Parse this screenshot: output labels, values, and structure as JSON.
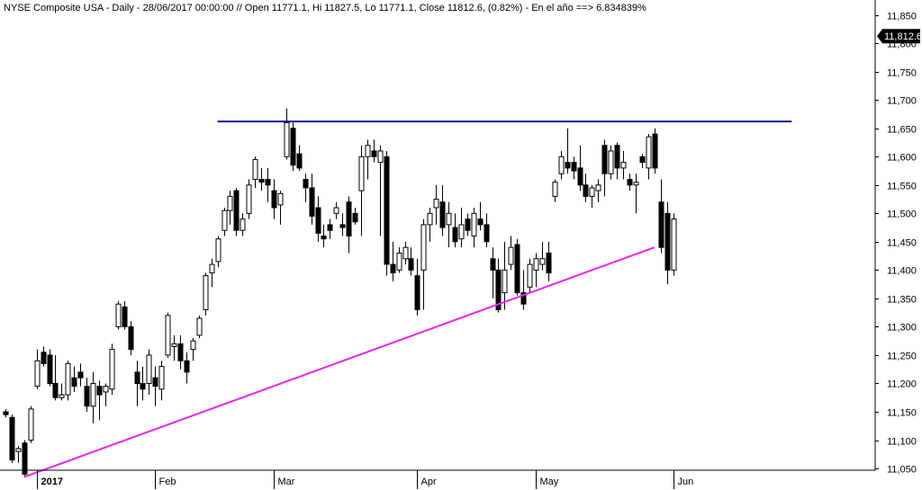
{
  "chart_data": {
    "type": "candlestick",
    "title": "NYSE Composite USA - Daily - 28/06/2017 00:00:00 // Open 11771.1, Hi 11827.5, Lo 11771.1, Close 11812.6, (0.82%) - En el año ==> 6.834839%",
    "ylim": [
      11020,
      11870
    ],
    "yticks": [
      "11,050",
      "11,100",
      "11,150",
      "11,200",
      "11,250",
      "11,300",
      "11,350",
      "11,400",
      "11,450",
      "11,500",
      "11,550",
      "11,600",
      "11,650",
      "11,700",
      "11,750",
      "11,800",
      "11,850"
    ],
    "ytick_values": [
      11050,
      11100,
      11150,
      11200,
      11250,
      11300,
      11350,
      11400,
      11450,
      11500,
      11550,
      11600,
      11650,
      11700,
      11750,
      11800,
      11850
    ],
    "x_labels": [
      {
        "label": "2017",
        "bar": 5
      },
      {
        "label": "Feb",
        "bar": 24
      },
      {
        "label": "Mar",
        "bar": 43
      },
      {
        "label": "Apr",
        "bar": 66
      },
      {
        "label": "May",
        "bar": 85
      },
      {
        "label": "Jun",
        "bar": 107
      }
    ],
    "last_value": "11,812.6",
    "last_close": 11812.6,
    "colors": {
      "up": "#ffffff",
      "down": "#000000",
      "resistance": "#1010a0",
      "support": "#ee22ee",
      "badge": "#000000"
    },
    "resistance_line": {
      "value": 11662,
      "from_bar": 34,
      "to_bar": 126
    },
    "support_line": {
      "from_bar": 3,
      "from_value": 11035,
      "to_bar": 104,
      "to_value": 11440
    },
    "bars": [
      [
        11150,
        11155,
        11140,
        11145
      ],
      [
        11140,
        11145,
        11060,
        11065
      ],
      [
        11080,
        11090,
        11060,
        11085
      ],
      [
        11095,
        11100,
        11035,
        11040
      ],
      [
        11100,
        11160,
        11095,
        11155
      ],
      [
        11195,
        11260,
        11190,
        11240
      ],
      [
        11255,
        11265,
        11230,
        11235
      ],
      [
        11250,
        11260,
        11195,
        11200
      ],
      [
        11200,
        11250,
        11170,
        11175
      ],
      [
        11175,
        11200,
        11170,
        11180
      ],
      [
        11180,
        11240,
        11170,
        11235
      ],
      [
        11210,
        11230,
        11185,
        11195
      ],
      [
        11220,
        11235,
        11195,
        11210
      ],
      [
        11195,
        11210,
        11150,
        11160
      ],
      [
        11160,
        11220,
        11130,
        11200
      ],
      [
        11195,
        11205,
        11135,
        11180
      ],
      [
        11185,
        11200,
        11160,
        11195
      ],
      [
        11190,
        11270,
        11180,
        11260
      ],
      [
        11300,
        11345,
        11295,
        11340
      ],
      [
        11335,
        11345,
        11295,
        11300
      ],
      [
        11300,
        11310,
        11250,
        11260
      ],
      [
        11220,
        11240,
        11160,
        11200
      ],
      [
        11200,
        11230,
        11170,
        11190
      ],
      [
        11200,
        11260,
        11180,
        11250
      ],
      [
        11210,
        11230,
        11160,
        11195
      ],
      [
        11190,
        11240,
        11170,
        11230
      ],
      [
        11250,
        11325,
        11245,
        11320
      ],
      [
        11265,
        11285,
        11240,
        11270
      ],
      [
        11270,
        11285,
        11225,
        11240
      ],
      [
        11240,
        11255,
        11200,
        11220
      ],
      [
        11260,
        11280,
        11240,
        11275
      ],
      [
        11285,
        11320,
        11280,
        11315
      ],
      [
        11330,
        11395,
        11320,
        11390
      ],
      [
        11395,
        11420,
        11370,
        11410
      ],
      [
        11415,
        11460,
        11405,
        11455
      ],
      [
        11470,
        11510,
        11460,
        11505
      ],
      [
        11505,
        11540,
        11480,
        11530
      ],
      [
        11540,
        11545,
        11460,
        11470
      ],
      [
        11470,
        11500,
        11460,
        11490
      ],
      [
        11500,
        11560,
        11490,
        11550
      ],
      [
        11560,
        11600,
        11545,
        11595
      ],
      [
        11560,
        11580,
        11540,
        11555
      ],
      [
        11560,
        11580,
        11520,
        11550
      ],
      [
        11540,
        11560,
        11490,
        11510
      ],
      [
        11515,
        11540,
        11480,
        11535
      ],
      [
        11600,
        11685,
        11595,
        11660
      ],
      [
        11650,
        11660,
        11575,
        11585
      ],
      [
        11605,
        11620,
        11575,
        11580
      ],
      [
        11560,
        11570,
        11520,
        11545
      ],
      [
        11545,
        11570,
        11480,
        11495
      ],
      [
        11510,
        11530,
        11450,
        11465
      ],
      [
        11460,
        11480,
        11440,
        11455
      ],
      [
        11480,
        11490,
        11455,
        11470
      ],
      [
        11500,
        11520,
        11490,
        11510
      ],
      [
        11480,
        11500,
        11460,
        11475
      ],
      [
        11520,
        11530,
        11430,
        11460
      ],
      [
        11500,
        11510,
        11480,
        11485
      ],
      [
        11540,
        11620,
        11460,
        11600
      ],
      [
        11600,
        11630,
        11560,
        11620
      ],
      [
        11610,
        11630,
        11590,
        11600
      ],
      [
        11590,
        11620,
        11460,
        11610
      ],
      [
        11600,
        11610,
        11390,
        11410
      ],
      [
        11410,
        11450,
        11380,
        11395
      ],
      [
        11400,
        11440,
        11395,
        11430
      ],
      [
        11420,
        11450,
        11410,
        11440
      ],
      [
        11420,
        11440,
        11390,
        11400
      ],
      [
        11390,
        11420,
        11320,
        11330
      ],
      [
        11400,
        11490,
        11330,
        11480
      ],
      [
        11480,
        11510,
        11450,
        11500
      ],
      [
        11510,
        11550,
        11480,
        11525
      ],
      [
        11520,
        11550,
        11460,
        11475
      ],
      [
        11480,
        11520,
        11440,
        11500
      ],
      [
        11475,
        11500,
        11440,
        11450
      ],
      [
        11455,
        11510,
        11440,
        11480
      ],
      [
        11490,
        11500,
        11460,
        11470
      ],
      [
        11460,
        11510,
        11440,
        11500
      ],
      [
        11490,
        11520,
        11470,
        11480
      ],
      [
        11480,
        11500,
        11440,
        11450
      ],
      [
        11420,
        11440,
        11350,
        11400
      ],
      [
        11400,
        11420,
        11325,
        11330
      ],
      [
        11360,
        11450,
        11330,
        11400
      ],
      [
        11410,
        11460,
        11400,
        11440
      ],
      [
        11445,
        11455,
        11355,
        11360
      ],
      [
        11360,
        11400,
        11330,
        11340
      ],
      [
        11370,
        11420,
        11360,
        11410
      ],
      [
        11400,
        11430,
        11370,
        11420
      ],
      [
        11410,
        11450,
        11400,
        11420
      ],
      [
        11430,
        11450,
        11380,
        11395
      ],
      [
        11530,
        11560,
        11520,
        11555
      ],
      [
        11570,
        11610,
        11560,
        11600
      ],
      [
        11590,
        11650,
        11570,
        11580
      ],
      [
        11590,
        11600,
        11560,
        11575
      ],
      [
        11580,
        11620,
        11540,
        11550
      ],
      [
        11550,
        11570,
        11520,
        11530
      ],
      [
        11530,
        11550,
        11510,
        11545
      ],
      [
        11540,
        11560,
        11520,
        11550
      ],
      [
        11620,
        11630,
        11530,
        11570
      ],
      [
        11570,
        11620,
        11560,
        11610
      ],
      [
        11620,
        11625,
        11560,
        11580
      ],
      [
        11580,
        11610,
        11560,
        11590
      ],
      [
        11560,
        11570,
        11540,
        11550
      ],
      [
        11550,
        11570,
        11500,
        11555
      ],
      [
        11600,
        11605,
        11580,
        11590
      ],
      [
        11580,
        11640,
        11560,
        11635
      ],
      [
        11640,
        11650,
        11570,
        11580
      ],
      [
        11520,
        11560,
        11430,
        11440
      ],
      [
        11500,
        11520,
        11375,
        11400
      ],
      [
        11400,
        11500,
        11390,
        11490
      ]
    ]
  }
}
